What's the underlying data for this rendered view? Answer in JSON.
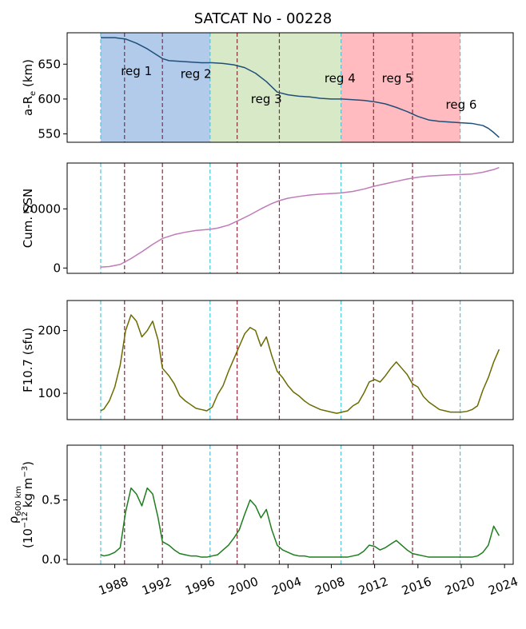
{
  "chart_data": {
    "type": "line",
    "title": "SATCAT No - 00228",
    "x_axis": {
      "range": [
        1983.6,
        2024.8
      ],
      "ticks": [
        1988,
        1992,
        1996,
        2000,
        2004,
        2008,
        2012,
        2016,
        2020,
        2024
      ],
      "tick_labels": [
        "1988",
        "1992",
        "1996",
        "2000",
        "2004",
        "2008",
        "2012",
        "2016",
        "2020",
        "2024"
      ]
    },
    "cyan_dashed_lines": [
      1986.7,
      1996.8,
      2008.9,
      2019.9
    ],
    "maroon_dashed_lines": [
      1988.9,
      1992.4,
      1999.3,
      2003.2,
      2011.9,
      2015.5
    ],
    "regions": [
      {
        "label": "reg 1",
        "start": 1986.7,
        "end": 1992.4,
        "color": "#aec8ea",
        "label_x": 1990.0,
        "label_y": 634
      },
      {
        "label": "reg 2",
        "start": 1992.4,
        "end": 1996.8,
        "color": "#aec8ea",
        "label_x": 1995.5,
        "label_y": 630
      },
      {
        "label": "reg 3",
        "start": 1996.8,
        "end": 2003.2,
        "color": "#d6e8c4",
        "label_x": 2002.0,
        "label_y": 594
      },
      {
        "label": "reg 4",
        "start": 2003.2,
        "end": 2008.9,
        "color": "#d6e8c4",
        "label_x": 2008.8,
        "label_y": 624
      },
      {
        "label": "reg 5",
        "start": 2008.9,
        "end": 2015.5,
        "color": "#ffb7bc",
        "label_x": 2014.1,
        "label_y": 624
      },
      {
        "label": "reg 6",
        "start": 2015.5,
        "end": 2019.9,
        "color": "#ffb7bc",
        "label_x": 2020.0,
        "label_y": 586
      }
    ],
    "panels": [
      {
        "id": "altitude",
        "ylabel_main": "a-R",
        "ylabel_sub": "e",
        "ylabel_unit": " (km)",
        "ylim": [
          538,
          695
        ],
        "yticks": [
          550,
          600,
          650
        ],
        "color": "#1f4e79",
        "x": [
          1986.7,
          1988.0,
          1989.0,
          1990.0,
          1991.0,
          1992.0,
          1992.4,
          1993.0,
          1994.0,
          1995.0,
          1996.0,
          1997.0,
          1998.0,
          1999.0,
          2000.0,
          2001.0,
          2002.0,
          2003.0,
          2004.0,
          2005.0,
          2006.0,
          2007.0,
          2008.0,
          2009.0,
          2010.0,
          2011.0,
          2012.0,
          2013.0,
          2014.0,
          2015.0,
          2016.0,
          2017.0,
          2018.0,
          2019.0,
          2020.0,
          2021.0,
          2022.0,
          2022.5,
          2023.0,
          2023.5
        ],
        "y": [
          688,
          688,
          686,
          680,
          672,
          662,
          658,
          655,
          654,
          653,
          652,
          652,
          651,
          649,
          645,
          637,
          625,
          610,
          606,
          604,
          603,
          601,
          600,
          600,
          599,
          598,
          596,
          593,
          588,
          582,
          575,
          570,
          568,
          567,
          566,
          565,
          562,
          558,
          552,
          545
        ]
      },
      {
        "id": "cumssn",
        "ylabel_main": "Cum. SSN",
        "ylim": [
          -1800,
          35500
        ],
        "yticks": [
          0,
          20000
        ],
        "color": "#c07ab8",
        "x": [
          1986.7,
          1987.5,
          1988.5,
          1989.5,
          1990.5,
          1991.5,
          1992.4,
          1993.5,
          1994.5,
          1995.5,
          1996.8,
          1997.5,
          1998.5,
          1999.5,
          2000.5,
          2001.5,
          2002.5,
          2003.2,
          2004.0,
          2005.0,
          2006.0,
          2007.0,
          2008.0,
          2008.9,
          2010.0,
          2011.0,
          2012.0,
          2013.0,
          2014.0,
          2015.0,
          2016.0,
          2017.0,
          2018.0,
          2019.0,
          2020.0,
          2021.0,
          2022.0,
          2023.0,
          2023.5
        ],
        "y": [
          300,
          500,
          1200,
          3200,
          5500,
          8000,
          10000,
          11300,
          12100,
          12700,
          13100,
          13500,
          14500,
          16200,
          18000,
          20000,
          21800,
          22800,
          23600,
          24200,
          24700,
          25000,
          25200,
          25400,
          25900,
          26700,
          27700,
          28500,
          29300,
          30100,
          30700,
          31100,
          31300,
          31500,
          31600,
          31800,
          32400,
          33300,
          34000
        ]
      },
      {
        "id": "f107",
        "ylabel_main": "F10.7 (sfu)",
        "ylim": [
          58,
          248
        ],
        "yticks": [
          100,
          200
        ],
        "color": "#6b6b00",
        "x": [
          1986.7,
          1987.0,
          1987.5,
          1988.0,
          1988.5,
          1989.0,
          1989.5,
          1990.0,
          1990.5,
          1991.0,
          1991.5,
          1992.0,
          1992.4,
          1993.0,
          1993.5,
          1994.0,
          1994.5,
          1995.0,
          1995.5,
          1996.0,
          1996.5,
          1997.0,
          1997.5,
          1998.0,
          1998.5,
          1999.0,
          1999.5,
          2000.0,
          2000.5,
          2001.0,
          2001.5,
          2002.0,
          2002.5,
          2003.0,
          2003.5,
          2004.0,
          2004.5,
          2005.0,
          2005.5,
          2006.0,
          2006.5,
          2007.0,
          2007.5,
          2008.0,
          2008.5,
          2009.0,
          2009.5,
          2010.0,
          2010.5,
          2011.0,
          2011.5,
          2012.0,
          2012.5,
          2013.0,
          2013.5,
          2014.0,
          2014.5,
          2015.0,
          2015.5,
          2016.0,
          2016.5,
          2017.0,
          2017.5,
          2018.0,
          2018.5,
          2019.0,
          2019.5,
          2020.0,
          2020.5,
          2021.0,
          2021.5,
          2022.0,
          2022.5,
          2023.0,
          2023.5
        ],
        "y": [
          72,
          75,
          88,
          110,
          145,
          200,
          225,
          215,
          190,
          200,
          215,
          185,
          140,
          128,
          115,
          96,
          88,
          82,
          76,
          74,
          72,
          78,
          98,
          112,
          135,
          155,
          175,
          195,
          205,
          200,
          175,
          190,
          160,
          135,
          125,
          112,
          102,
          96,
          88,
          82,
          78,
          74,
          72,
          70,
          68,
          70,
          72,
          80,
          85,
          100,
          118,
          122,
          118,
          128,
          140,
          150,
          140,
          130,
          115,
          110,
          95,
          86,
          80,
          74,
          72,
          70,
          70,
          70,
          71,
          74,
          80,
          105,
          125,
          150,
          170
        ]
      },
      {
        "id": "density",
        "ylabel_main": "ρ",
        "ylabel_sub": "600 km",
        "ylabel_line2": "(10",
        "ylabel_sup": "−12",
        "ylabel_line2_rest": " kg m",
        "ylabel_sup2": "−3",
        "ylabel_close": ")",
        "ylim": [
          -0.04,
          0.96
        ],
        "yticks": [
          0.0,
          0.5
        ],
        "ytick_labels": [
          "0.0",
          "0.5"
        ],
        "color": "#1e7d1e",
        "x": [
          1986.7,
          1987.0,
          1987.5,
          1988.0,
          1988.5,
          1989.0,
          1989.5,
          1990.0,
          1990.5,
          1991.0,
          1991.5,
          1992.0,
          1992.4,
          1993.0,
          1993.5,
          1994.0,
          1994.5,
          1995.0,
          1995.5,
          1996.0,
          1996.5,
          1997.0,
          1997.5,
          1998.0,
          1998.5,
          1999.0,
          1999.5,
          2000.0,
          2000.5,
          2001.0,
          2001.5,
          2002.0,
          2002.5,
          2003.0,
          2003.5,
          2004.0,
          2004.5,
          2005.0,
          2005.5,
          2006.0,
          2006.5,
          2007.0,
          2007.5,
          2008.0,
          2008.5,
          2009.0,
          2009.5,
          2010.0,
          2010.5,
          2011.0,
          2011.5,
          2012.0,
          2012.5,
          2013.0,
          2013.5,
          2014.0,
          2014.5,
          2015.0,
          2015.5,
          2016.0,
          2016.5,
          2017.0,
          2017.5,
          2018.0,
          2018.5,
          2019.0,
          2019.5,
          2020.0,
          2020.5,
          2021.0,
          2021.5,
          2022.0,
          2022.5,
          2023.0,
          2023.5
        ],
        "y": [
          0.04,
          0.03,
          0.04,
          0.06,
          0.1,
          0.4,
          0.6,
          0.55,
          0.45,
          0.6,
          0.55,
          0.35,
          0.15,
          0.12,
          0.08,
          0.05,
          0.04,
          0.03,
          0.03,
          0.02,
          0.02,
          0.03,
          0.04,
          0.08,
          0.12,
          0.18,
          0.25,
          0.38,
          0.5,
          0.45,
          0.35,
          0.42,
          0.25,
          0.12,
          0.08,
          0.06,
          0.04,
          0.03,
          0.03,
          0.02,
          0.02,
          0.02,
          0.02,
          0.02,
          0.02,
          0.02,
          0.02,
          0.03,
          0.04,
          0.07,
          0.12,
          0.11,
          0.08,
          0.1,
          0.13,
          0.16,
          0.12,
          0.08,
          0.05,
          0.04,
          0.03,
          0.02,
          0.02,
          0.02,
          0.02,
          0.02,
          0.02,
          0.02,
          0.02,
          0.02,
          0.03,
          0.06,
          0.12,
          0.28,
          0.2
        ]
      }
    ]
  }
}
